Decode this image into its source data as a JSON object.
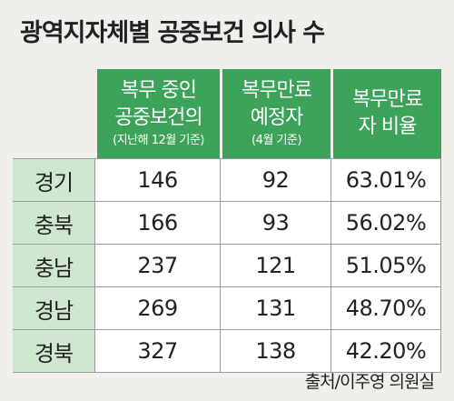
{
  "title": "광역지자체별 공중보건 의사 수",
  "source": "출처/이주영 의원실",
  "chart_data": {
    "type": "table",
    "columns": [
      {
        "line1": "복무 중인",
        "line2": "공중보건의",
        "sub": "(지난해 12월 기준)"
      },
      {
        "line1": "복무만료",
        "line2": "예정자",
        "sub": "(4월 기준)"
      },
      {
        "line1": "복무만료",
        "line2": "자 비율",
        "sub": ""
      }
    ],
    "rows": [
      {
        "region": "경기",
        "serving": "146",
        "expiring": "92",
        "ratio": "63.01%"
      },
      {
        "region": "충북",
        "serving": "166",
        "expiring": "93",
        "ratio": "56.02%"
      },
      {
        "region": "충남",
        "serving": "237",
        "expiring": "121",
        "ratio": "51.05%"
      },
      {
        "region": "경남",
        "serving": "269",
        "expiring": "131",
        "ratio": "48.70%"
      },
      {
        "region": "경북",
        "serving": "327",
        "expiring": "138",
        "ratio": "42.20%"
      }
    ]
  }
}
